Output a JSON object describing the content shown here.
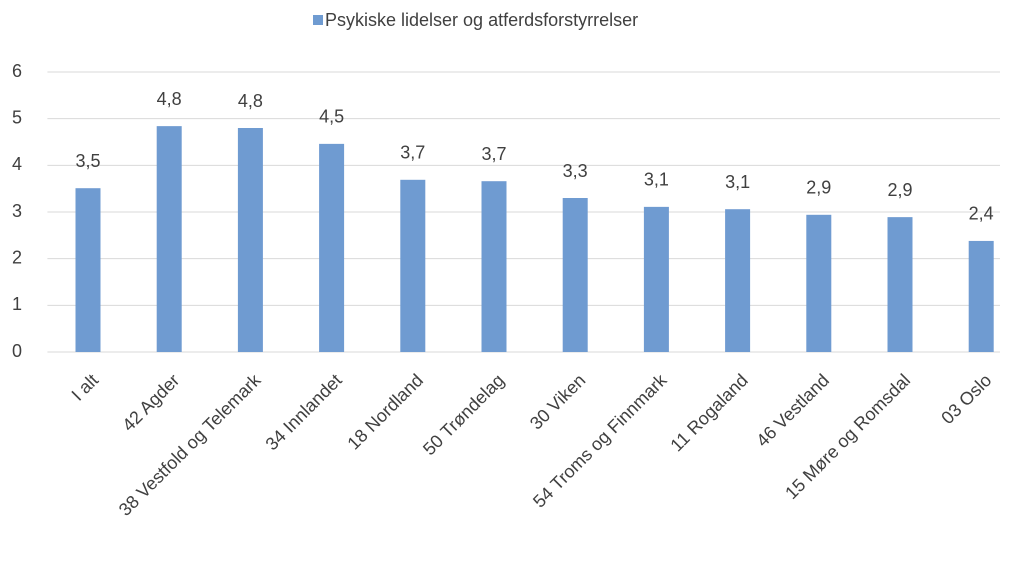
{
  "chart_data": {
    "type": "bar",
    "categories": [
      "I alt",
      "42 Agder",
      "38 Vestfold og Telemark",
      "34 Innlandet",
      "18 Nordland",
      "50 Trøndelag",
      "30 Viken",
      "54 Troms og Finnmark",
      "11 Rogaland",
      "46 Vestland",
      "15 Møre og Romsdal",
      "03 Oslo"
    ],
    "series": [
      {
        "name": "Psykiske lidelser og atferdsforstyrrelser",
        "color": "#6f9bd1",
        "values": [
          3.51,
          4.84,
          4.8,
          4.46,
          3.69,
          3.66,
          3.3,
          3.11,
          3.06,
          2.94,
          2.89,
          2.38
        ],
        "value_labels": [
          "3,5",
          "4,8",
          "4,8",
          "4,5",
          "3,7",
          "3,7",
          "3,3",
          "3,1",
          "3,1",
          "2,9",
          "2,9",
          "2,4"
        ]
      }
    ],
    "ylim": [
      0,
      6
    ],
    "yticks": [
      0,
      1,
      2,
      3,
      4,
      5,
      6
    ],
    "grid": true,
    "legend": "top"
  }
}
